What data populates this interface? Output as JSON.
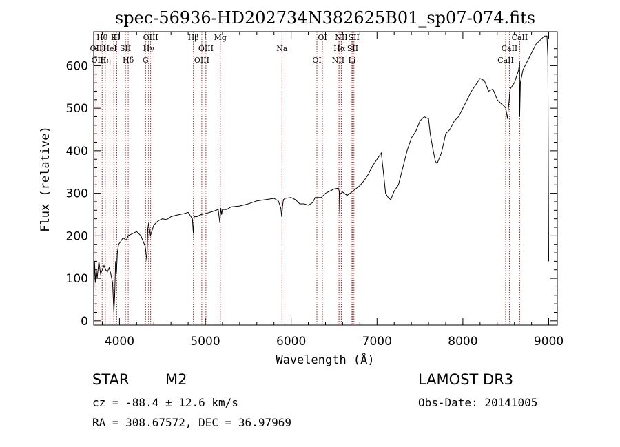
{
  "chart_data": {
    "type": "line",
    "title": "spec-56936-HD202734N382625B01_sp07-074.fits",
    "xlabel": "Wavelength (Å)",
    "ylabel": "Flux (relative)",
    "xlim": [
      3700,
      9100
    ],
    "ylim": [
      -10,
      680
    ],
    "xticks": [
      "4000",
      "5000",
      "6000",
      "7000",
      "8000",
      "9000"
    ],
    "yticks": [
      "0",
      "100",
      "200",
      "300",
      "400",
      "500",
      "600"
    ],
    "series": [
      {
        "x": [
          3700,
          3710,
          3720,
          3730,
          3740,
          3760,
          3780,
          3800,
          3820,
          3840,
          3860,
          3880,
          3900,
          3920,
          3935,
          3945,
          3955,
          3965,
          3975,
          3990,
          4010,
          4040,
          4080,
          4100,
          4150,
          4200,
          4250,
          4300,
          4320,
          4330,
          4340,
          4360,
          4400,
          4450,
          4500,
          4550,
          4600,
          4650,
          4700,
          4750,
          4800,
          4850,
          4860,
          4870,
          4900,
          4950,
          5000,
          5050,
          5100,
          5150,
          5170,
          5180,
          5190,
          5200,
          5250,
          5300,
          5400,
          5500,
          5600,
          5700,
          5800,
          5850,
          5880,
          5890,
          5900,
          5910,
          5930,
          6000,
          6050,
          6100,
          6150,
          6200,
          6250,
          6280,
          6300,
          6350,
          6400,
          6450,
          6500,
          6550,
          6560,
          6565,
          6570,
          6580,
          6600,
          6650,
          6700,
          6750,
          6800,
          6850,
          6900,
          6950,
          7000,
          7050,
          7080,
          7100,
          7130,
          7160,
          7200,
          7250,
          7300,
          7350,
          7400,
          7450,
          7500,
          7550,
          7600,
          7620,
          7650,
          7680,
          7700,
          7750,
          7800,
          7850,
          7900,
          7950,
          8000,
          8050,
          8100,
          8150,
          8200,
          8250,
          8300,
          8350,
          8400,
          8450,
          8480,
          8500,
          8520,
          8530,
          8542,
          8550,
          8600,
          8650,
          8660,
          8662,
          8670,
          8700,
          8750,
          8800,
          8850,
          8900,
          8950,
          8980,
          8990,
          9000
        ],
        "y": [
          30,
          140,
          90,
          120,
          100,
          140,
          110,
          120,
          130,
          120,
          115,
          125,
          110,
          90,
          20,
          60,
          140,
          110,
          160,
          180,
          185,
          195,
          190,
          200,
          205,
          210,
          200,
          175,
          140,
          215,
          230,
          200,
          225,
          235,
          240,
          238,
          245,
          248,
          250,
          252,
          255,
          240,
          205,
          245,
          245,
          250,
          252,
          255,
          258,
          262,
          230,
          265,
          250,
          262,
          262,
          268,
          270,
          275,
          282,
          285,
          288,
          282,
          265,
          245,
          270,
          285,
          288,
          290,
          285,
          275,
          275,
          272,
          278,
          290,
          290,
          290,
          300,
          305,
          310,
          312,
          305,
          255,
          298,
          300,
          303,
          295,
          302,
          310,
          318,
          330,
          345,
          365,
          380,
          395,
          340,
          300,
          290,
          285,
          305,
          320,
          360,
          400,
          430,
          445,
          470,
          480,
          475,
          440,
          405,
          375,
          370,
          395,
          440,
          450,
          470,
          480,
          500,
          520,
          540,
          555,
          570,
          565,
          540,
          545,
          520,
          510,
          505,
          500,
          475,
          500,
          525,
          545,
          560,
          590,
          610,
          480,
          560,
          590,
          610,
          630,
          650,
          660,
          670,
          670,
          620,
          140
        ]
      }
    ]
  },
  "lines": [
    {
      "label": "Hθ",
      "wl": 3798
    },
    {
      "label": "OII",
      "wl": 3727
    },
    {
      "label": "OIII",
      "wl": 3760
    },
    {
      "label": "K",
      "wl": 3934
    },
    {
      "label": "HeI",
      "wl": 3889
    },
    {
      "label": "Hη",
      "wl": 3835
    },
    {
      "label": "H",
      "wl": 3968
    },
    {
      "label": "SII",
      "wl": 4070
    },
    {
      "label": "Hδ",
      "wl": 4102
    },
    {
      "label": "OIII",
      "wl": 4363
    },
    {
      "label": "Hγ",
      "wl": 4340
    },
    {
      "label": "G",
      "wl": 4304
    },
    {
      "label": "Hβ",
      "wl": 4861
    },
    {
      "label": "OIII",
      "wl": 5007
    },
    {
      "label": "OIII",
      "wl": 4959
    },
    {
      "label": "Mg",
      "wl": 5175
    },
    {
      "label": "Na",
      "wl": 5893
    },
    {
      "label": "OI",
      "wl": 6300
    },
    {
      "label": "OI",
      "wl": 6364
    },
    {
      "label": "Hα",
      "wl": 6563
    },
    {
      "label": "NII",
      "wl": 6548
    },
    {
      "label": "NII",
      "wl": 6584
    },
    {
      "label": "SII",
      "wl": 6717
    },
    {
      "label": "Li",
      "wl": 6708
    },
    {
      "label": "SII",
      "wl": 6731
    },
    {
      "label": "CaII",
      "wl": 8542
    },
    {
      "label": "CaII",
      "wl": 8498
    },
    {
      "label": "CaII",
      "wl": 8662
    }
  ],
  "info": {
    "object_class": "STAR",
    "subclass": "M2",
    "survey": "LAMOST DR3",
    "cz": "cz = -88.4 ± 12.6 km/s",
    "obs_date": "Obs-Date: 20141005",
    "radec": "RA = 308.67572, DEC =  36.97969"
  },
  "colors": {
    "line_marker": "#b02020",
    "spectrum": "#000000"
  }
}
